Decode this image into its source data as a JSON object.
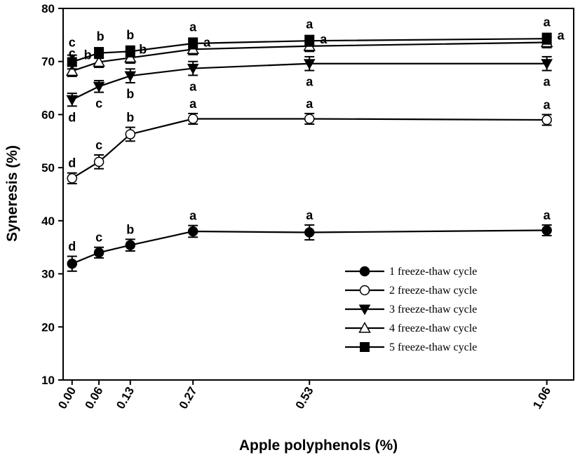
{
  "chart_data": {
    "type": "line",
    "xlabel": "Apple polyphenols (%)",
    "ylabel": "Syneresis (%)",
    "xlim": [
      -0.02,
      1.12
    ],
    "ylim": [
      10,
      80
    ],
    "yticks": [
      10,
      20,
      30,
      40,
      50,
      60,
      70,
      80
    ],
    "x": [
      0.0,
      0.06,
      0.13,
      0.27,
      0.53,
      1.06
    ],
    "x_tick_labels": [
      "0.00",
      "0.06",
      "0.13",
      "0.27",
      "0.53",
      "1.06"
    ],
    "grid": false,
    "legend_position": "bottom-right",
    "series": [
      {
        "name": "1 freeze-thaw cycle",
        "marker": "filled-circle",
        "values": [
          31.9,
          34.0,
          35.4,
          38.0,
          37.8,
          38.2
        ],
        "errors": [
          1.4,
          1.0,
          1.1,
          1.1,
          1.4,
          1.0
        ],
        "letters": [
          "d",
          "c",
          "b",
          "a",
          "a",
          "a"
        ]
      },
      {
        "name": "2 freeze-thaw cycle",
        "marker": "open-circle",
        "values": [
          48.0,
          51.1,
          56.3,
          59.2,
          59.2,
          59.0
        ],
        "errors": [
          1.0,
          1.3,
          1.3,
          1.0,
          1.0,
          1.0
        ],
        "letters": [
          "d",
          "c",
          "b",
          "a",
          "a",
          "a"
        ]
      },
      {
        "name": "3 freeze-thaw cycle",
        "marker": "filled-triangle-down",
        "values": [
          62.8,
          65.3,
          67.3,
          68.7,
          69.6,
          69.6
        ],
        "errors": [
          1.2,
          1.1,
          1.3,
          1.3,
          1.3,
          1.3
        ],
        "letters": [
          "d",
          "c",
          "b",
          "a",
          "a",
          "a"
        ]
      },
      {
        "name": "4 freeze-thaw cycle",
        "marker": "open-triangle-up",
        "values": [
          68.2,
          69.9,
          70.7,
          72.3,
          72.9,
          73.6
        ],
        "errors": [
          1.0,
          1.0,
          1.0,
          1.0,
          1.0,
          1.0
        ],
        "letters": [
          "c",
          "b",
          "b",
          "a",
          "a",
          "a"
        ]
      },
      {
        "name": "5 freeze-thaw cycle",
        "marker": "filled-square",
        "values": [
          69.9,
          71.6,
          71.9,
          73.4,
          73.9,
          74.3
        ],
        "errors": [
          1.3,
          1.0,
          1.0,
          1.0,
          1.0,
          1.0
        ],
        "letters": [
          "c",
          "b",
          "b",
          "a",
          "a",
          "a"
        ]
      }
    ]
  }
}
